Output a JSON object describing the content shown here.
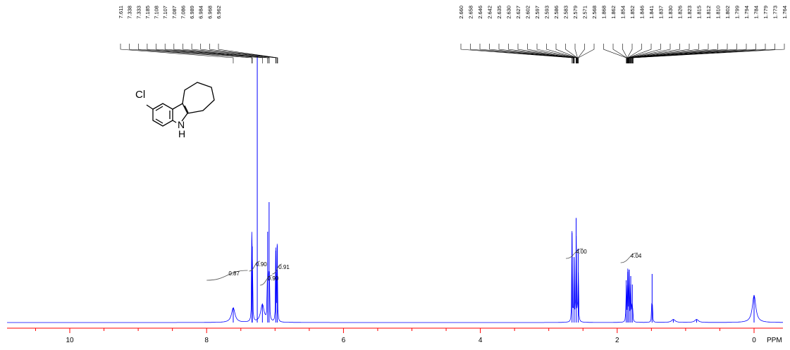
{
  "chart_data": {
    "type": "line",
    "title": "",
    "xlabel": "PPM",
    "ylabel": "",
    "xlim": [
      10.9,
      -0.8
    ],
    "x_reversed": true,
    "x_ticks": [
      "10",
      "8",
      "6",
      "4",
      "2",
      "0"
    ],
    "x_tick_values": [
      10,
      8,
      6,
      4,
      2,
      0
    ],
    "colors": {
      "spectrum": "#0000ff",
      "axis": "#ff0000",
      "text": "#000000"
    },
    "peaks": [
      {
        "ppm": 7.611,
        "height": 0.14
      },
      {
        "ppm": 7.338,
        "height": 0.78
      },
      {
        "ppm": 7.333,
        "height": 0.72
      },
      {
        "ppm": 7.185,
        "height": 0.17
      },
      {
        "ppm": 7.108,
        "height": 0.86
      },
      {
        "ppm": 7.087,
        "height": 1.14
      },
      {
        "ppm": 6.989,
        "height": 0.68
      },
      {
        "ppm": 6.968,
        "height": 0.73
      },
      {
        "ppm": 2.66,
        "height": 0.85
      },
      {
        "ppm": 2.63,
        "height": 0.62
      },
      {
        "ppm": 2.6,
        "height": 0.99
      },
      {
        "ppm": 2.57,
        "height": 0.7
      },
      {
        "ppm": 1.868,
        "height": 0.4
      },
      {
        "ppm": 1.846,
        "height": 0.48
      },
      {
        "ppm": 1.826,
        "height": 0.5
      },
      {
        "ppm": 1.802,
        "height": 0.44
      },
      {
        "ppm": 1.779,
        "height": 0.36
      },
      {
        "ppm": 1.49,
        "height": 0.46
      },
      {
        "ppm": 1.18,
        "height": 0.03
      },
      {
        "ppm": 0.84,
        "height": 0.03
      },
      {
        "ppm": 0.0,
        "height": 0.26
      }
    ],
    "integrals": [
      {
        "label": "0.87",
        "start": 8.0,
        "end": 7.4
      },
      {
        "label": "0.90",
        "start": 7.38,
        "end": 7.22
      },
      {
        "label": "0.90",
        "start": 7.22,
        "end": 7.04
      },
      {
        "label": "0.91",
        "start": 7.04,
        "end": 6.9
      },
      {
        "label": "4.00",
        "start": 2.75,
        "end": 2.5
      },
      {
        "label": "4.04",
        "start": 1.95,
        "end": 1.7
      }
    ],
    "peak_labels_left": [
      "7.611",
      "7.338",
      "7.333",
      "7.185",
      "7.108",
      "7.107",
      "7.087",
      "7.086",
      "6.989",
      "6.984",
      "6.968",
      "6.962"
    ],
    "peak_labels_right": [
      "2.660",
      "2.658",
      "2.646",
      "2.642",
      "2.635",
      "2.630",
      "2.627",
      "2.602",
      "2.597",
      "2.593",
      "2.586",
      "2.583",
      "2.579",
      "2.571",
      "2.568",
      "1.868",
      "1.862",
      "1.854",
      "1.852",
      "1.846",
      "1.841",
      "1.837",
      "1.830",
      "1.826",
      "1.823",
      "1.815",
      "1.812",
      "1.810",
      "1.802",
      "1.799",
      "1.794",
      "1.784",
      "1.779",
      "1.773",
      "1.764"
    ],
    "molecule_labels": {
      "chlorine": "Cl",
      "nitrogen": "N",
      "hydrogen": "H"
    }
  }
}
